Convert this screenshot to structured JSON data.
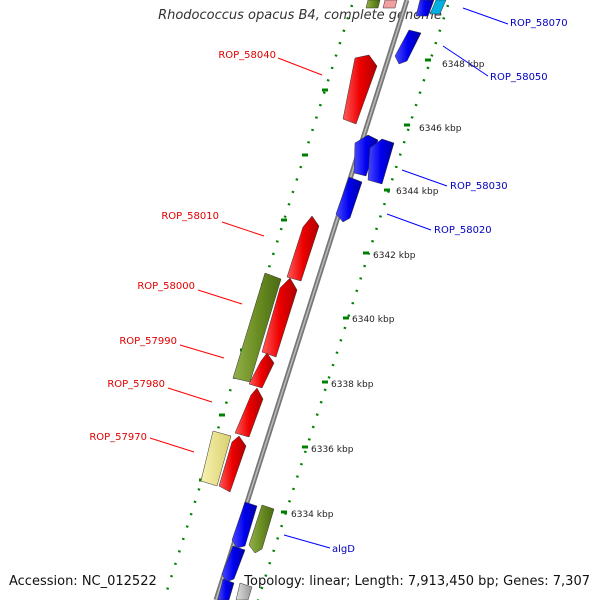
{
  "title": "Rhodococcus opacus B4, complete genome",
  "footer": {
    "accession": "Accession: NC_012522",
    "topology": "Topology: linear; Length: 7,913,450 bp; Genes: 7,307"
  },
  "ticks": [
    "6334 kbp",
    "6336 kbp",
    "6338 kbp",
    "6340 kbp",
    "6342 kbp",
    "6344 kbp",
    "6346 kbp",
    "6348 kbp"
  ],
  "genes": [
    {
      "name": "ROP_58070",
      "strand": "reverse"
    },
    {
      "name": "ROP_58050",
      "strand": "reverse"
    },
    {
      "name": "ROP_58040",
      "strand": "forward"
    },
    {
      "name": "ROP_58030",
      "strand": "reverse"
    },
    {
      "name": "ROP_58020",
      "strand": "reverse"
    },
    {
      "name": "ROP_58010",
      "strand": "forward"
    },
    {
      "name": "ROP_58000",
      "strand": "forward"
    },
    {
      "name": "ROP_57990",
      "strand": "forward"
    },
    {
      "name": "ROP_57980",
      "strand": "forward"
    },
    {
      "name": "ROP_57970",
      "strand": "forward"
    },
    {
      "name": "algD",
      "strand": "reverse"
    }
  ],
  "colors": {
    "forward_gene": "#ff0000",
    "reverse_gene": "#0000ff",
    "green_gene": "#6b8e23",
    "pale_gene": "#eee68a",
    "tick_dots": "#008000",
    "axis": "#808080"
  }
}
